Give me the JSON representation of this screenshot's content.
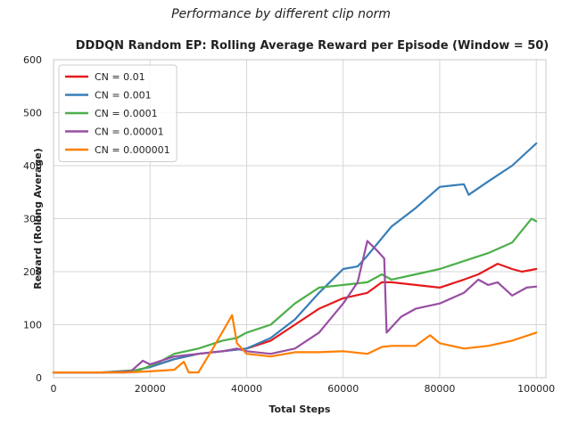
{
  "figure_title": "Performance by different clip norm",
  "chart_data": {
    "type": "line",
    "title": "DDDQN Random EP: Rolling Average Reward per Episode (Window = 50)",
    "xlabel": "Total Steps",
    "ylabel": "Reward (Rolling Average)",
    "xlim": [
      0,
      102000
    ],
    "ylim": [
      0,
      600
    ],
    "xticks": [
      0,
      20000,
      40000,
      60000,
      80000,
      100000
    ],
    "xtick_labels": [
      "0",
      "20000",
      "40000",
      "60000",
      "80000",
      "100000"
    ],
    "yticks": [
      0,
      100,
      200,
      300,
      400,
      500,
      600
    ],
    "ytick_labels": [
      "0",
      "100",
      "200",
      "300",
      "400",
      "500",
      "600"
    ],
    "grid": true,
    "legend_position": "top-left",
    "series": [
      {
        "name": "CN = 0.01",
        "color": "#e41a1c",
        "x": [
          0,
          10000,
          16000,
          20000,
          25000,
          30000,
          35000,
          40000,
          45000,
          50000,
          55000,
          60000,
          65000,
          68000,
          70000,
          75000,
          80000,
          85000,
          88000,
          92000,
          95000,
          97000,
          100000
        ],
        "y": [
          10,
          10,
          12,
          20,
          35,
          45,
          50,
          55,
          70,
          100,
          130,
          150,
          160,
          180,
          180,
          175,
          170,
          185,
          195,
          215,
          205,
          200,
          205
        ]
      },
      {
        "name": "CN = 0.001",
        "color": "#377eb8",
        "x": [
          0,
          10000,
          15000,
          20000,
          25000,
          30000,
          35000,
          40000,
          45000,
          50000,
          55000,
          60000,
          63000,
          65000,
          70000,
          75000,
          80000,
          85000,
          86000,
          90000,
          95000,
          100000
        ],
        "y": [
          10,
          10,
          10,
          20,
          35,
          45,
          50,
          55,
          75,
          110,
          160,
          205,
          210,
          230,
          285,
          320,
          360,
          365,
          345,
          370,
          400,
          442
        ]
      },
      {
        "name": "CN = 0.0001",
        "color": "#4daf4a",
        "x": [
          0,
          10000,
          18000,
          22000,
          25000,
          30000,
          35000,
          38000,
          40000,
          45000,
          50000,
          55000,
          60000,
          65000,
          68000,
          70000,
          75000,
          80000,
          85000,
          90000,
          95000,
          99000,
          100000
        ],
        "y": [
          10,
          10,
          15,
          30,
          45,
          55,
          70,
          75,
          85,
          100,
          140,
          170,
          175,
          180,
          195,
          185,
          195,
          205,
          220,
          235,
          255,
          300,
          295
        ]
      },
      {
        "name": "CN = 0.00001",
        "color": "#984ea3",
        "x": [
          0,
          10000,
          16000,
          18500,
          20000,
          25000,
          30000,
          35000,
          38000,
          40000,
          45000,
          50000,
          55000,
          60000,
          63000,
          65000,
          67000,
          68500,
          69000,
          72000,
          75000,
          80000,
          85000,
          88000,
          90000,
          92000,
          95000,
          98000,
          100000
        ],
        "y": [
          10,
          10,
          12,
          32,
          25,
          40,
          45,
          50,
          55,
          50,
          45,
          55,
          85,
          140,
          180,
          258,
          240,
          225,
          85,
          115,
          130,
          140,
          160,
          185,
          175,
          180,
          155,
          170,
          172
        ]
      },
      {
        "name": "CN = 0.000001",
        "color": "#ff7f00",
        "x": [
          0,
          10000,
          15000,
          20000,
          25000,
          27000,
          28000,
          30000,
          33000,
          37000,
          38000,
          40000,
          45000,
          50000,
          55000,
          60000,
          65000,
          68000,
          70000,
          75000,
          78000,
          80000,
          85000,
          90000,
          95000,
          100000
        ],
        "y": [
          10,
          10,
          10,
          12,
          15,
          30,
          10,
          10,
          55,
          118,
          65,
          45,
          40,
          48,
          48,
          50,
          45,
          58,
          60,
          60,
          80,
          65,
          55,
          60,
          70,
          85
        ]
      }
    ]
  }
}
